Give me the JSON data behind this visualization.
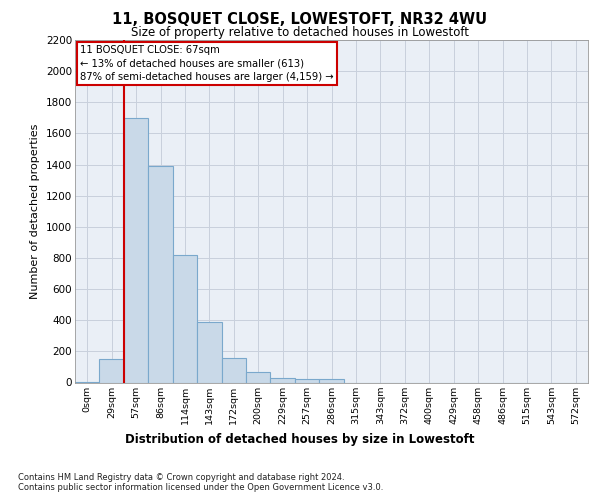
{
  "title": "11, BOSQUET CLOSE, LOWESTOFT, NR32 4WU",
  "subtitle": "Size of property relative to detached houses in Lowestoft",
  "xlabel": "Distribution of detached houses by size in Lowestoft",
  "ylabel": "Number of detached properties",
  "footnote": "Contains HM Land Registry data © Crown copyright and database right 2024.\nContains public sector information licensed under the Open Government Licence v3.0.",
  "bar_labels": [
    "0sqm",
    "29sqm",
    "57sqm",
    "86sqm",
    "114sqm",
    "143sqm",
    "172sqm",
    "200sqm",
    "229sqm",
    "257sqm",
    "286sqm",
    "315sqm",
    "343sqm",
    "372sqm",
    "400sqm",
    "429sqm",
    "458sqm",
    "486sqm",
    "515sqm",
    "543sqm",
    "572sqm"
  ],
  "bar_values": [
    5,
    150,
    1700,
    1390,
    820,
    390,
    160,
    65,
    30,
    25,
    25,
    0,
    0,
    0,
    0,
    0,
    0,
    0,
    0,
    0,
    0
  ],
  "bar_color": "#c9d9e8",
  "bar_edge_color": "#7aa8cc",
  "annotation_line1": "11 BOSQUET CLOSE: 67sqm",
  "annotation_line2": "← 13% of detached houses are smaller (613)",
  "annotation_line3": "87% of semi-detached houses are larger (4,159) →",
  "annotation_box_facecolor": "#ffffff",
  "annotation_box_edgecolor": "#cc0000",
  "red_line_color": "#cc0000",
  "red_line_x": 1.5,
  "ylim": [
    0,
    2200
  ],
  "yticks": [
    0,
    200,
    400,
    600,
    800,
    1000,
    1200,
    1400,
    1600,
    1800,
    2000,
    2200
  ],
  "grid_color": "#c8d0dc",
  "background_color": "#eaeff6"
}
